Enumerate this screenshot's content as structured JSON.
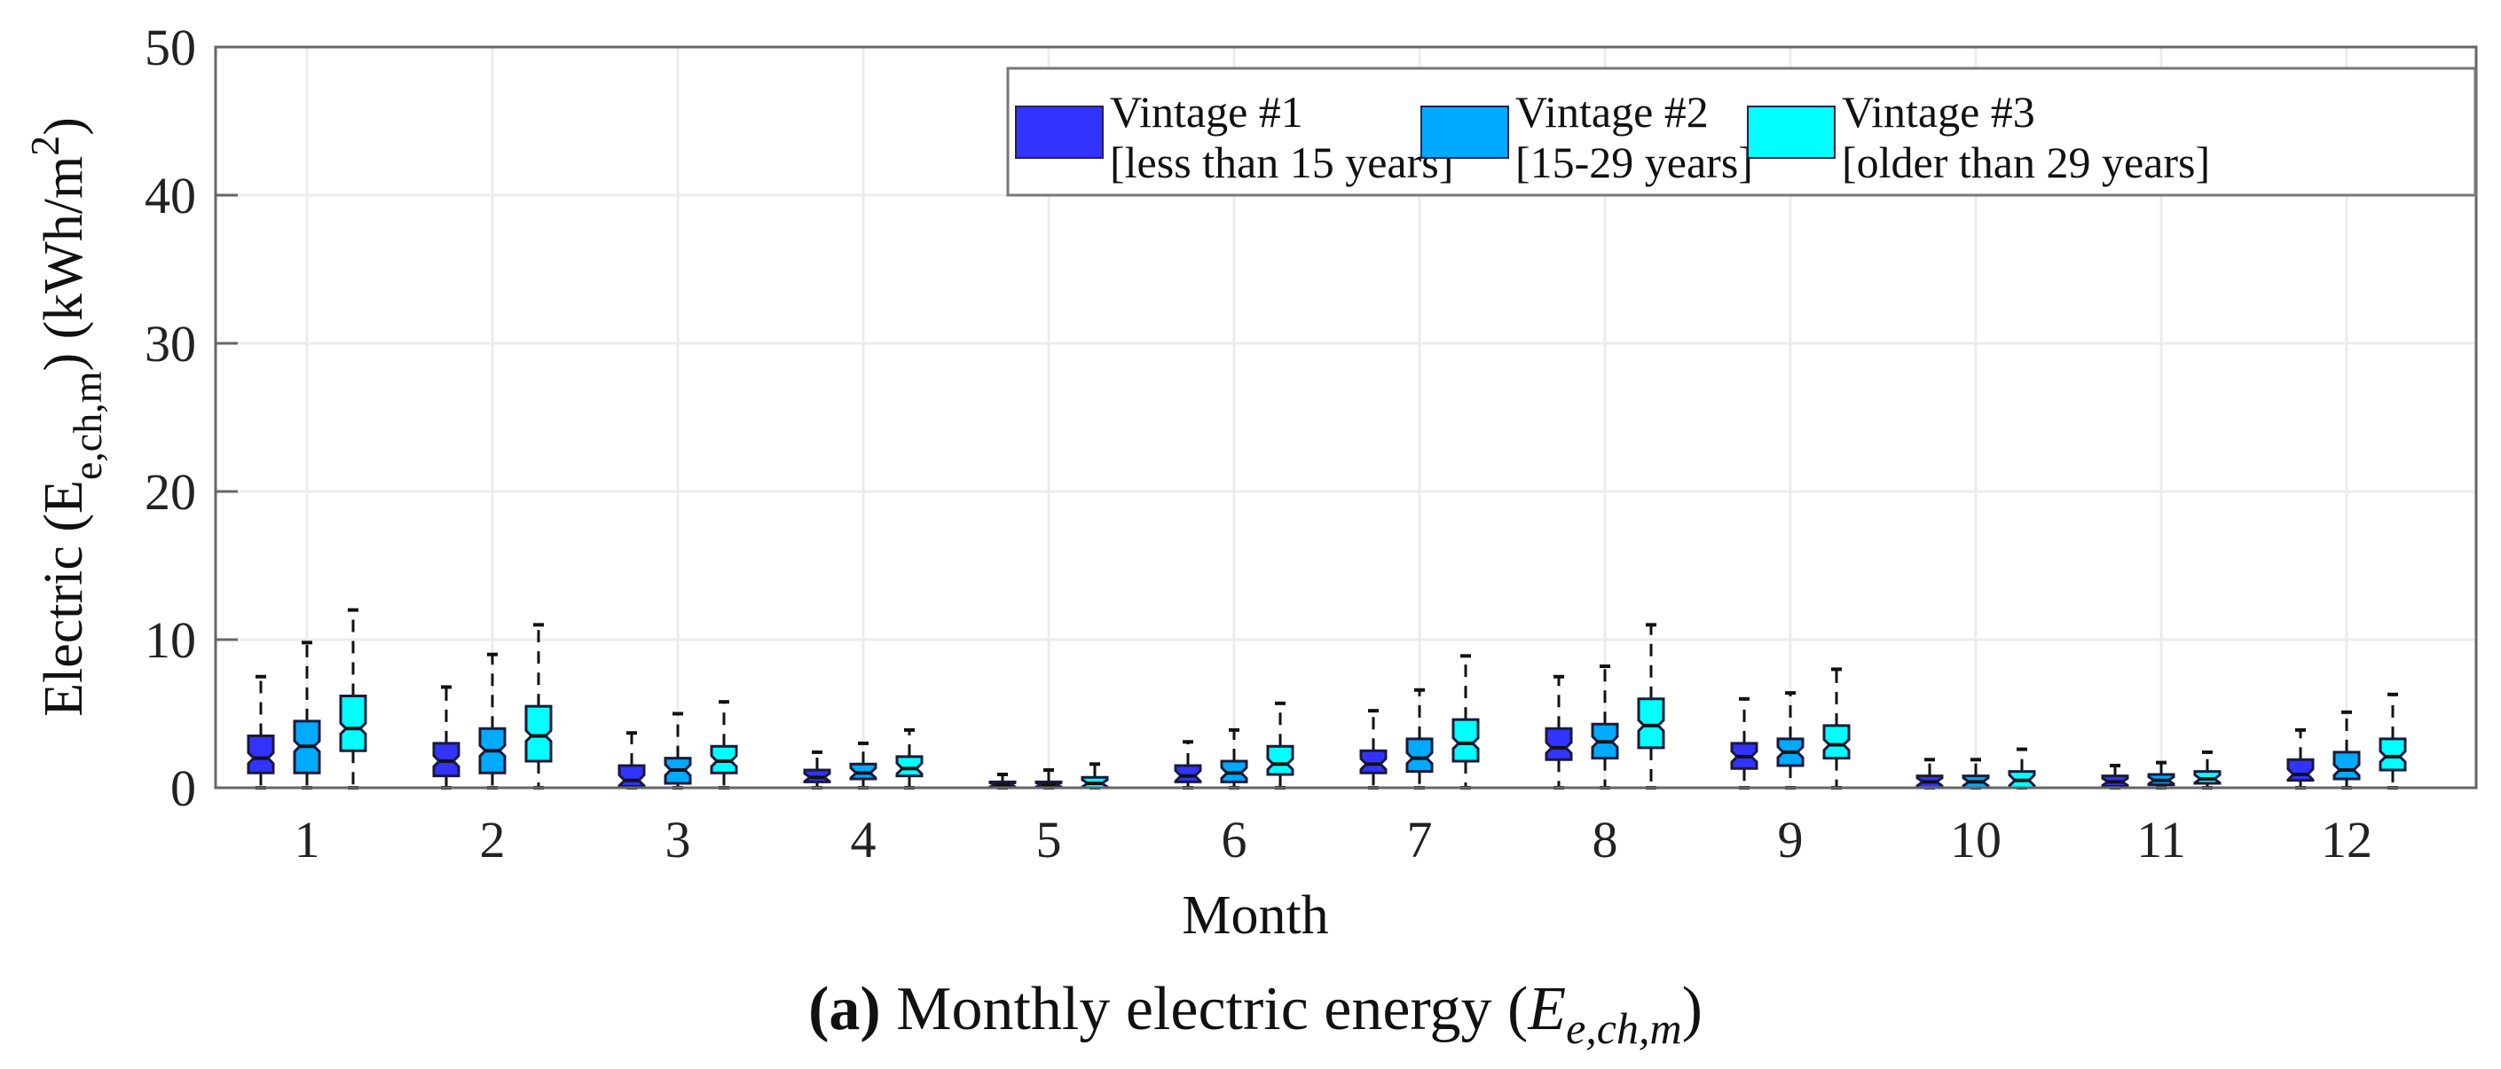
{
  "chart_data": {
    "type": "boxplot",
    "title": "",
    "caption": {
      "label": "(a)",
      "text": " Monthly electric energy (",
      "symbol": "E",
      "subscript": "e,ch,m",
      "close": ")"
    },
    "xlabel": "Month",
    "ylabel": {
      "prefix": "Electric (E",
      "subscript": "e,ch,m",
      "middle": ") (kWh/m",
      "superscript": "2",
      "suffix": ")"
    },
    "ylim": [
      0,
      50
    ],
    "yticks": [
      "0",
      "10",
      "20",
      "30",
      "40",
      "50"
    ],
    "categories": [
      "1",
      "2",
      "3",
      "4",
      "5",
      "6",
      "7",
      "8",
      "9",
      "10",
      "11",
      "12"
    ],
    "grid": true,
    "legend_position": "top-right",
    "stats_order": [
      "whisker_low",
      "q1",
      "median",
      "q3",
      "whisker_high"
    ],
    "series": [
      {
        "name": "Vintage #1",
        "sublabel": "[less than 15 years]",
        "color": "#3333ff",
        "boxes": [
          [
            0,
            1,
            2,
            3.5,
            7.5
          ],
          [
            0,
            0.8,
            1.8,
            3,
            6.8
          ],
          [
            0,
            0.1,
            0.5,
            1.5,
            3.7
          ],
          [
            0,
            0.4,
            0.7,
            1.2,
            2.4
          ],
          [
            0,
            0,
            0.2,
            0.4,
            0.9
          ],
          [
            0,
            0.4,
            0.8,
            1.5,
            3.1
          ],
          [
            0,
            1,
            1.6,
            2.5,
            5.2
          ],
          [
            0,
            1.9,
            2.7,
            4,
            7.5
          ],
          [
            0,
            1.3,
            2.1,
            3,
            6
          ],
          [
            0,
            0,
            0.4,
            0.8,
            1.9
          ],
          [
            0,
            0.1,
            0.4,
            0.8,
            1.5
          ],
          [
            0,
            0.5,
            0.9,
            1.9,
            3.9
          ]
        ]
      },
      {
        "name": "Vintage #2",
        "sublabel": "[15-29 years]",
        "color": "#00aaff",
        "boxes": [
          [
            0,
            1,
            2.8,
            4.5,
            9.8
          ],
          [
            0,
            1,
            2.5,
            4,
            9
          ],
          [
            0,
            0.3,
            1.2,
            2,
            5
          ],
          [
            0,
            0.6,
            1,
            1.6,
            3
          ],
          [
            0,
            0,
            0.2,
            0.4,
            1.2
          ],
          [
            0,
            0.4,
            1,
            1.8,
            3.9
          ],
          [
            0,
            1.1,
            2,
            3.3,
            6.6
          ],
          [
            0,
            2,
            3.1,
            4.3,
            8.2
          ],
          [
            0,
            1.5,
            2.4,
            3.3,
            6.4
          ],
          [
            0,
            0,
            0.4,
            0.8,
            1.9
          ],
          [
            0,
            0.2,
            0.5,
            0.9,
            1.7
          ],
          [
            0,
            0.6,
            1.2,
            2.4,
            5.1
          ]
        ]
      },
      {
        "name": "Vintage #3",
        "sublabel": "[older than 29 years]",
        "color": "#00ffff",
        "boxes": [
          [
            0,
            2.5,
            4,
            6.2,
            12
          ],
          [
            0,
            1.8,
            3.5,
            5.5,
            11
          ],
          [
            0,
            1,
            1.8,
            2.8,
            5.8
          ],
          [
            0,
            0.8,
            1.3,
            2.1,
            3.9
          ],
          [
            0,
            0,
            0.3,
            0.7,
            1.6
          ],
          [
            0,
            0.9,
            1.6,
            2.8,
            5.7
          ],
          [
            0,
            1.8,
            3,
            4.6,
            8.9
          ],
          [
            0,
            2.7,
            4.2,
            6,
            11
          ],
          [
            0,
            2,
            2.9,
            4.2,
            8
          ],
          [
            0,
            0,
            0.5,
            1.1,
            2.6
          ],
          [
            0,
            0.3,
            0.6,
            1.1,
            2.4
          ],
          [
            0,
            1.2,
            2.1,
            3.3,
            6.3
          ]
        ]
      }
    ]
  }
}
